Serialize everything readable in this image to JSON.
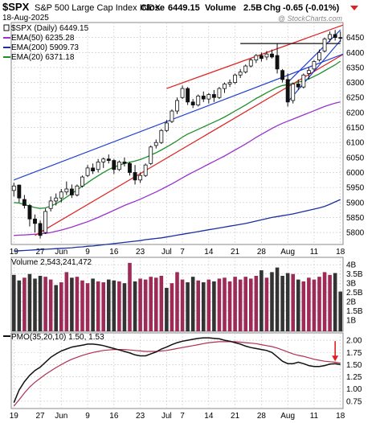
{
  "header": {
    "symbol": "$SPX",
    "name": "S&P 500 Large Cap Index",
    "exchange": "INDX",
    "date": "18-Aug-2025",
    "close_label": "Close",
    "close": "6449.15",
    "volume_label": "Volume",
    "volume": "2.5B",
    "chg_label": "Chg",
    "chg": "-0.65 (-0.01%)",
    "watermark": "@ StockCharts.com"
  },
  "colors": {
    "up_candle": "#ffffff",
    "down_candle": "#111111",
    "ema50": "#9933cc",
    "ema200": "#1a2fa0",
    "ema20": "#1f8f2a",
    "channel_red": "#e02020",
    "trend_blue": "#2040d0",
    "volume_up": "#9e2a57",
    "volume_down": "#333333",
    "pmo": "#111111",
    "pmo_signal": "#b03050",
    "arrow": "#e02020",
    "background": "#ffffff",
    "grid": "#c8c8c8"
  },
  "chart_data": {
    "type": "candlestick",
    "price_panel": {
      "legend": [
        {
          "label": "$SPX (Daily) 6449.15",
          "color": "#111111",
          "style": "candle"
        },
        {
          "label": "EMA(50) 6235.28",
          "color": "#9933cc",
          "style": "line"
        },
        {
          "label": "EMA(200) 5909.73",
          "color": "#1a2fa0",
          "style": "line"
        },
        {
          "label": "EMA(20) 6371.18",
          "color": "#1f8f2a",
          "style": "line"
        }
      ],
      "y_ticks": [
        5800,
        5850,
        5900,
        5950,
        6000,
        6050,
        6100,
        6150,
        6200,
        6250,
        6300,
        6350,
        6400,
        6450
      ],
      "ylim": [
        5760,
        6500
      ],
      "x_labels": [
        "19",
        "27",
        "Jun",
        "9",
        "16",
        "23",
        "Jul",
        "7",
        "14",
        "21",
        "28",
        "Aug",
        "11",
        "18"
      ],
      "x_label_index": [
        0,
        5,
        9,
        14,
        19,
        24,
        29,
        32,
        37,
        42,
        47,
        52,
        57,
        62
      ],
      "candles": [
        [
          5940,
          5966,
          5920,
          5955
        ],
        [
          5958,
          5960,
          5900,
          5915
        ],
        [
          5910,
          5925,
          5880,
          5890
        ],
        [
          5890,
          5895,
          5820,
          5845
        ],
        [
          5845,
          5860,
          5800,
          5830
        ],
        [
          5830,
          5840,
          5780,
          5790
        ],
        [
          5800,
          5880,
          5795,
          5870
        ],
        [
          5880,
          5920,
          5870,
          5905
        ],
        [
          5905,
          5930,
          5890,
          5915
        ],
        [
          5915,
          5945,
          5900,
          5935
        ],
        [
          5935,
          5970,
          5925,
          5945
        ],
        [
          5945,
          5960,
          5915,
          5925
        ],
        [
          5925,
          5960,
          5920,
          5955
        ],
        [
          5955,
          5990,
          5950,
          5985
        ],
        [
          5990,
          6025,
          5985,
          6015
        ],
        [
          6015,
          6030,
          5995,
          6005
        ],
        [
          6010,
          6045,
          6000,
          6035
        ],
        [
          6035,
          6050,
          6015,
          6045
        ],
        [
          6045,
          6060,
          6030,
          6040
        ],
        [
          6040,
          6045,
          5995,
          6010
        ],
        [
          6010,
          6040,
          6005,
          6035
        ],
        [
          6035,
          6050,
          6020,
          6030
        ],
        [
          6030,
          6035,
          5990,
          6000
        ],
        [
          6000,
          6025,
          5960,
          5975
        ],
        [
          5975,
          6000,
          5965,
          5990
        ],
        [
          5990,
          6030,
          5985,
          6025
        ],
        [
          6030,
          6090,
          6025,
          6085
        ],
        [
          6090,
          6110,
          6080,
          6100
        ],
        [
          6100,
          6145,
          6095,
          6140
        ],
        [
          6140,
          6175,
          6135,
          6165
        ],
        [
          6170,
          6210,
          6165,
          6205
        ],
        [
          6205,
          6250,
          6195,
          6240
        ],
        [
          6250,
          6290,
          6245,
          6280
        ],
        [
          6280,
          6285,
          6225,
          6235
        ],
        [
          6235,
          6245,
          6215,
          6225
        ],
        [
          6225,
          6260,
          6220,
          6255
        ],
        [
          6255,
          6270,
          6235,
          6245
        ],
        [
          6245,
          6265,
          6230,
          6260
        ],
        [
          6260,
          6275,
          6235,
          6250
        ],
        [
          6250,
          6285,
          6245,
          6280
        ],
        [
          6280,
          6300,
          6265,
          6295
        ],
        [
          6295,
          6310,
          6285,
          6300
        ],
        [
          6300,
          6330,
          6295,
          6325
        ],
        [
          6325,
          6345,
          6315,
          6335
        ],
        [
          6335,
          6360,
          6330,
          6355
        ],
        [
          6355,
          6380,
          6350,
          6375
        ],
        [
          6375,
          6395,
          6365,
          6390
        ],
        [
          6390,
          6400,
          6370,
          6380
        ],
        [
          6385,
          6405,
          6375,
          6395
        ],
        [
          6395,
          6410,
          6380,
          6385
        ],
        [
          6390,
          6430,
          6330,
          6345
        ],
        [
          6340,
          6345,
          6300,
          6310
        ],
        [
          6310,
          6330,
          6220,
          6235
        ],
        [
          6240,
          6300,
          6230,
          6295
        ],
        [
          6295,
          6310,
          6275,
          6285
        ],
        [
          6285,
          6330,
          6280,
          6325
        ],
        [
          6330,
          6350,
          6310,
          6340
        ],
        [
          6345,
          6375,
          6335,
          6370
        ],
        [
          6375,
          6410,
          6370,
          6400
        ],
        [
          6405,
          6450,
          6400,
          6445
        ],
        [
          6445,
          6470,
          6435,
          6460
        ],
        [
          6460,
          6475,
          6440,
          6450
        ],
        [
          6450,
          6470,
          6435,
          6449
        ]
      ],
      "ema20": [
        5900,
        5898,
        5893,
        5888,
        5883,
        5880,
        5882,
        5888,
        5896,
        5906,
        5918,
        5930,
        5942,
        5954,
        5966,
        5978,
        5989,
        6000,
        6010,
        6018,
        6024,
        6030,
        6034,
        6038,
        6043,
        6050,
        6058,
        6066,
        6075,
        6085,
        6095,
        6106,
        6118,
        6128,
        6136,
        6144,
        6152,
        6160,
        6168,
        6176,
        6185,
        6195,
        6205,
        6215,
        6225,
        6236,
        6247,
        6256,
        6266,
        6275,
        6284,
        6290,
        6293,
        6297,
        6301,
        6306,
        6312,
        6320,
        6329,
        6339,
        6349,
        6359,
        6371
      ],
      "ema50": [
        5790,
        5791,
        5792,
        5793,
        5794,
        5795,
        5797,
        5800,
        5804,
        5808,
        5813,
        5818,
        5824,
        5830,
        5836,
        5843,
        5850,
        5858,
        5866,
        5874,
        5882,
        5890,
        5897,
        5904,
        5911,
        5919,
        5927,
        5935,
        5944,
        5953,
        5962,
        5972,
        5982,
        5992,
        6001,
        6010,
        6019,
        6028,
        6037,
        6046,
        6055,
        6065,
        6075,
        6085,
        6095,
        6106,
        6117,
        6127,
        6137,
        6147,
        6156,
        6164,
        6171,
        6178,
        6185,
        6192,
        6199,
        6206,
        6213,
        6220,
        6226,
        6231,
        6235
      ],
      "ema200": [
        5738,
        5739,
        5740,
        5741,
        5742,
        5743,
        5744,
        5745,
        5746,
        5747,
        5748,
        5749,
        5751,
        5752,
        5754,
        5755,
        5757,
        5759,
        5761,
        5763,
        5765,
        5767,
        5769,
        5771,
        5773,
        5776,
        5778,
        5780,
        5782,
        5785,
        5788,
        5791,
        5794,
        5797,
        5800,
        5803,
        5806,
        5809,
        5812,
        5815,
        5818,
        5821,
        5824,
        5827,
        5830,
        5834,
        5838,
        5842,
        5846,
        5850,
        5853,
        5856,
        5859,
        5862,
        5866,
        5870,
        5874,
        5878,
        5882,
        5887,
        5894,
        5902,
        5910
      ]
    },
    "volume_panel": {
      "label": "Volume 2,543,241,472",
      "y_ticks": [
        1.0,
        1.5,
        2.0,
        2.5,
        3.0,
        3.5,
        4.0
      ],
      "y_tick_labels": [
        "1B",
        "1.5B",
        "2B",
        "2.5B",
        "3B",
        "3.5B",
        "4B"
      ],
      "ylim": [
        0.4,
        4.4
      ],
      "values": [
        3.45,
        3.15,
        3.3,
        3.5,
        3.25,
        3.4,
        3.35,
        3.2,
        2.9,
        3.05,
        3.6,
        3.3,
        3.35,
        3.15,
        3.0,
        3.25,
        3.1,
        3.05,
        3.2,
        3.15,
        3.1,
        3.0,
        4.1,
        3.1,
        3.25,
        3.2,
        3.35,
        3.3,
        3.4,
        2.75,
        3.0,
        3.6,
        3.2,
        3.05,
        3.35,
        3.15,
        3.05,
        3.2,
        3.1,
        3.25,
        3.3,
        3.1,
        3.35,
        3.2,
        3.35,
        3.25,
        3.4,
        3.7,
        3.3,
        3.6,
        3.85,
        3.4,
        3.55,
        3.5,
        3.2,
        3.1,
        3.3,
        3.2,
        3.35,
        3.6,
        3.45,
        3.55,
        2.55
      ],
      "up": [
        false,
        false,
        true,
        false,
        false,
        false,
        true,
        true,
        false,
        true,
        true,
        false,
        true,
        true,
        true,
        false,
        true,
        true,
        false,
        false,
        true,
        false,
        true,
        false,
        true,
        true,
        true,
        true,
        true,
        false,
        true,
        true,
        true,
        false,
        false,
        true,
        false,
        true,
        false,
        true,
        true,
        true,
        true,
        true,
        true,
        true,
        true,
        false,
        true,
        false,
        false,
        false,
        false,
        true,
        false,
        true,
        true,
        true,
        true,
        true,
        true,
        false,
        false
      ]
    },
    "pmo_panel": {
      "label": "PMO(35,20,10) 1.50, 1.53",
      "y_ticks": [
        0.75,
        1.0,
        1.25,
        1.5,
        1.75,
        2.0
      ],
      "y_tick_labels": [
        "0.75",
        "1.00",
        "1.25",
        "1.50",
        "1.75",
        "2.00"
      ],
      "ylim": [
        0.6,
        2.15
      ],
      "pmo": [
        0.72,
        0.98,
        1.15,
        1.28,
        1.38,
        1.45,
        1.55,
        1.65,
        1.72,
        1.78,
        1.82,
        1.86,
        1.88,
        1.9,
        1.92,
        1.92,
        1.91,
        1.89,
        1.86,
        1.83,
        1.8,
        1.77,
        1.74,
        1.7,
        1.68,
        1.68,
        1.72,
        1.76,
        1.82,
        1.86,
        1.91,
        1.95,
        1.98,
        2.0,
        2.02,
        2.04,
        2.05,
        2.05,
        2.04,
        2.03,
        2.0,
        1.98,
        1.95,
        1.92,
        1.88,
        1.85,
        1.83,
        1.81,
        1.79,
        1.75,
        1.66,
        1.57,
        1.52,
        1.52,
        1.55,
        1.52,
        1.48,
        1.46,
        1.46,
        1.48,
        1.51,
        1.52,
        1.5
      ],
      "signal": [
        0.65,
        0.78,
        0.92,
        1.04,
        1.14,
        1.22,
        1.3,
        1.37,
        1.44,
        1.5,
        1.56,
        1.61,
        1.65,
        1.69,
        1.72,
        1.75,
        1.77,
        1.79,
        1.8,
        1.81,
        1.81,
        1.81,
        1.8,
        1.79,
        1.78,
        1.77,
        1.77,
        1.77,
        1.78,
        1.79,
        1.81,
        1.83,
        1.85,
        1.87,
        1.89,
        1.91,
        1.93,
        1.95,
        1.96,
        1.97,
        1.97,
        1.97,
        1.97,
        1.96,
        1.95,
        1.94,
        1.93,
        1.91,
        1.89,
        1.87,
        1.84,
        1.8,
        1.76,
        1.72,
        1.69,
        1.67,
        1.64,
        1.61,
        1.59,
        1.57,
        1.56,
        1.55,
        1.53
      ],
      "arrow_at_index": 61
    },
    "trendlines": [
      {
        "color": "red",
        "points": [
          [
            4,
            5790
          ],
          [
            67,
            6440
          ]
        ]
      },
      {
        "color": "red",
        "points": [
          [
            29,
            6280
          ],
          [
            67,
            6520
          ]
        ]
      },
      {
        "color": "blue",
        "points": [
          [
            0,
            5975
          ],
          [
            67,
            6425
          ]
        ]
      },
      {
        "color": "blue",
        "points": [
          [
            52,
            6235
          ],
          [
            62,
            6440
          ]
        ]
      },
      {
        "color": "blue",
        "points": [
          [
            52,
            6300
          ],
          [
            62,
            6475
          ]
        ]
      },
      {
        "color": "black",
        "points": [
          [
            43,
            6430
          ],
          [
            62,
            6430
          ]
        ]
      }
    ]
  }
}
